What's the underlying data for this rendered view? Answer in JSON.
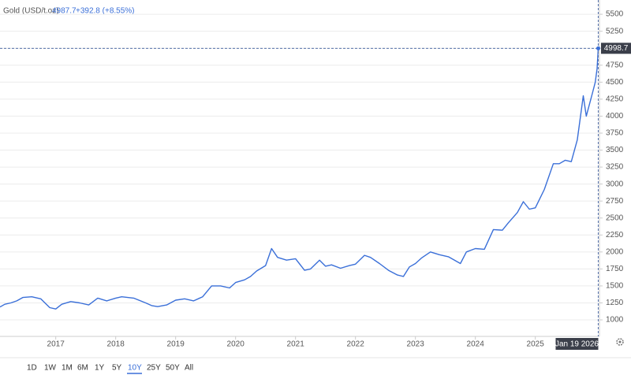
{
  "chart_data": {
    "type": "line",
    "title": "Gold (USD/t.oz)",
    "price": 4987.7,
    "change": "+392.8 (+8.55%)",
    "color": "#3a6fd8",
    "x": [
      2016.07,
      2016.15,
      2016.25,
      2016.35,
      2016.45,
      2016.6,
      2016.75,
      2016.9,
      2017.0,
      2017.1,
      2017.25,
      2017.4,
      2017.55,
      2017.7,
      2017.85,
      2018.0,
      2018.1,
      2018.3,
      2018.5,
      2018.6,
      2018.7,
      2018.85,
      2019.0,
      2019.15,
      2019.3,
      2019.45,
      2019.6,
      2019.75,
      2019.9,
      2020.0,
      2020.15,
      2020.25,
      2020.35,
      2020.5,
      2020.6,
      2020.7,
      2020.85,
      2021.0,
      2021.15,
      2021.25,
      2021.4,
      2021.5,
      2021.6,
      2021.75,
      2021.9,
      2022.0,
      2022.15,
      2022.25,
      2022.4,
      2022.55,
      2022.7,
      2022.8,
      2022.9,
      2023.0,
      2023.1,
      2023.25,
      2023.4,
      2023.55,
      2023.75,
      2023.85,
      2024.0,
      2024.15,
      2024.3,
      2024.45,
      2024.55,
      2024.7,
      2024.8,
      2024.9,
      2025.0,
      2025.15,
      2025.3,
      2025.4,
      2025.5,
      2025.6,
      2025.7,
      2025.8,
      2025.85,
      2025.95,
      2026.0,
      2026.03,
      2026.05
    ],
    "values": [
      1190,
      1230,
      1250,
      1280,
      1330,
      1340,
      1310,
      1180,
      1160,
      1230,
      1270,
      1250,
      1220,
      1320,
      1280,
      1320,
      1340,
      1320,
      1250,
      1210,
      1195,
      1220,
      1290,
      1310,
      1280,
      1340,
      1500,
      1500,
      1470,
      1550,
      1590,
      1640,
      1720,
      1800,
      2050,
      1920,
      1880,
      1900,
      1730,
      1750,
      1880,
      1790,
      1810,
      1760,
      1800,
      1820,
      1950,
      1920,
      1830,
      1730,
      1660,
      1640,
      1780,
      1830,
      1910,
      2000,
      1960,
      1930,
      1830,
      2000,
      2050,
      2040,
      2330,
      2320,
      2430,
      2580,
      2740,
      2630,
      2650,
      2920,
      3300,
      3300,
      3350,
      3330,
      3650,
      4300,
      4000,
      4330,
      4500,
      4700,
      4998.7
    ],
    "xlim": [
      2016.07,
      2026.07
    ],
    "xticks": [
      2017,
      2018,
      2019,
      2020,
      2021,
      2022,
      2023,
      2024,
      2025
    ],
    "ylim": [
      780,
      5710
    ],
    "yticks": [
      1000,
      1250,
      1500,
      1750,
      2000,
      2250,
      2500,
      2750,
      3000,
      3250,
      3500,
      3750,
      4000,
      4250,
      4500,
      4750,
      5000,
      5250,
      5500
    ],
    "grid": true,
    "crosshair": {
      "value": 4998.7,
      "x_label": "Jan 19 2026"
    },
    "range_buttons": [
      "1D",
      "1W",
      "1M",
      "6M",
      "1Y",
      "5Y",
      "10Y",
      "25Y",
      "50Y",
      "All"
    ],
    "selected_range_index": 6
  }
}
